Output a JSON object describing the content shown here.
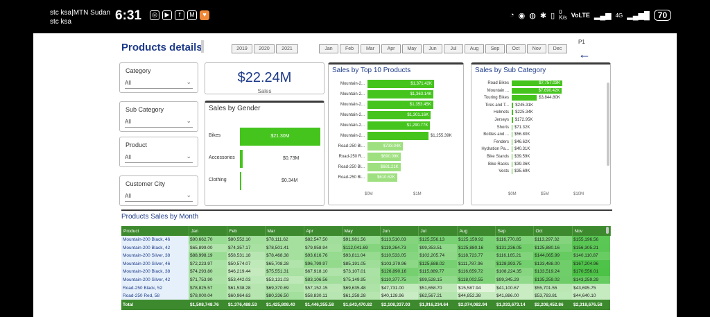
{
  "status": {
    "carrier_line1": "stc ksa|MTN Sudan",
    "carrier_line2": "stc ksa",
    "time": "6:31",
    "speed_value": "0",
    "speed_unit": "K/s",
    "volte": "VoLTE",
    "network": "4G",
    "battery": "70"
  },
  "header": {
    "title": "Products details",
    "page_indicator": "P1",
    "years": [
      "2019",
      "2020",
      "2021"
    ],
    "months": [
      "Jan",
      "Feb",
      "Mar",
      "Apr",
      "May",
      "Jun",
      "Jul",
      "Aug",
      "Sep",
      "Oct",
      "Nov",
      "Dec"
    ]
  },
  "slicers": {
    "category": {
      "label": "Category",
      "value": "All"
    },
    "sub_category": {
      "label": "Sub Category",
      "value": "All"
    },
    "product": {
      "label": "Product",
      "value": "All"
    },
    "customer_city": {
      "label": "Customer City",
      "value": "All"
    }
  },
  "kpi": {
    "value": "$22.24M",
    "label": "Sales"
  },
  "gender_chart": {
    "title": "Sales by Gender",
    "rows": [
      {
        "label": "Bikes",
        "value_label": "$21.30M",
        "value": 21.3
      },
      {
        "label": "Accessories",
        "value_label": "$0.73M",
        "value": 0.73
      },
      {
        "label": "Clothing",
        "value_label": "$0.34M",
        "value": 0.34
      }
    ]
  },
  "top10_chart": {
    "title": "Sales by Top 10 Products",
    "ticks": [
      "$0M",
      "$1M"
    ],
    "rows": [
      {
        "label": "Mountain-2...",
        "value_label": "$1,371.42K",
        "value": 1371.42,
        "strong": true
      },
      {
        "label": "Mountain-2...",
        "value_label": "$1,363.14K",
        "value": 1363.14,
        "strong": true
      },
      {
        "label": "Mountain-2...",
        "value_label": "$1,353.45K",
        "value": 1353.45,
        "strong": true
      },
      {
        "label": "Mountain-2...",
        "value_label": "$1,301.16K",
        "value": 1301.16,
        "strong": true
      },
      {
        "label": "Mountain-2...",
        "value_label": "$1,290.77K",
        "value": 1290.77,
        "strong": true
      },
      {
        "label": "Mountain-2...",
        "value_label": "$1,255.39K",
        "value": 1255.39,
        "strong": true
      },
      {
        "label": "Road-250 Bl...",
        "value_label": "$733.04K",
        "value": 733.04,
        "strong": false
      },
      {
        "label": "Road-250 R...",
        "value_label": "$690.09K",
        "value": 690.09,
        "strong": false
      },
      {
        "label": "Road-250 Bl...",
        "value_label": "$681.21K",
        "value": 681.21,
        "strong": false
      },
      {
        "label": "Road-250 Bl...",
        "value_label": "$610.62K",
        "value": 610.62,
        "strong": false
      }
    ]
  },
  "subcat_chart": {
    "title": "Sales by Sub Category",
    "ticks": [
      "$0M",
      "$5M",
      "$10M"
    ],
    "rows": [
      {
        "label": "Road Bikes",
        "value_label": "$7,757.03K",
        "value": 7757.03
      },
      {
        "label": "Mountain ...",
        "value_label": "$7,690.42K",
        "value": 7690.42
      },
      {
        "label": "Touring Bikes",
        "value_label": "$3,844.80K",
        "value": 3844.8
      },
      {
        "label": "Tires and T...",
        "value_label": "$245.31K",
        "value": 245.31
      },
      {
        "label": "Helmets",
        "value_label": "$225.34K",
        "value": 225.34
      },
      {
        "label": "Jerseys",
        "value_label": "$172.95K",
        "value": 172.95
      },
      {
        "label": "Shorts",
        "value_label": "$71.32K",
        "value": 71.32
      },
      {
        "label": "Bottles and ...",
        "value_label": "$56.80K",
        "value": 56.8
      },
      {
        "label": "Fenders",
        "value_label": "$46.62K",
        "value": 46.62
      },
      {
        "label": "Hydration Pa...",
        "value_label": "$40.31K",
        "value": 40.31
      },
      {
        "label": "Bike Stands",
        "value_label": "$39.59K",
        "value": 39.59
      },
      {
        "label": "Bike Racks",
        "value_label": "$39.36K",
        "value": 39.36
      },
      {
        "label": "Vests",
        "value_label": "$35.69K",
        "value": 35.69
      }
    ]
  },
  "matrix": {
    "title": "Products Sales by Month",
    "columns": [
      "Product",
      "Jan",
      "Feb",
      "Mar",
      "Apr",
      "May",
      "Jun",
      "Jul",
      "Aug",
      "Sep",
      "Oct",
      "Nov"
    ],
    "rows": [
      [
        "Mountain-200 Black, 46",
        "$90,662.70",
        "$80,552.10",
        "$78,111.62",
        "$82,547.50",
        "$91,981.56",
        "$113,510.03",
        "$125,556.13",
        "$125,159.92",
        "$116,770.85",
        "$113,297.32",
        "$155,196.56"
      ],
      [
        "Mountain-200 Black, 42",
        "$65,899.00",
        "$74,357.17",
        "$78,501.41",
        "$79,958.94",
        "$112,041.69",
        "$119,264.73",
        "$99,353.51",
        "$125,880.16",
        "$131,236.05",
        "$125,880.16",
        "$156,305.21"
      ],
      [
        "Mountain-200 Silver, 38",
        "$88,998.19",
        "$58,531.18",
        "$78,468.38",
        "$93,616.76",
        "$93,811.04",
        "$110,533.05",
        "$102,205.74",
        "$118,723.77",
        "$116,165.21",
        "$144,065.99",
        "$140,110.87"
      ],
      [
        "Mountain-200 Silver, 46",
        "$72,223.97",
        "$50,574.07",
        "$65,708.28",
        "$96,799.97",
        "$85,191.05",
        "$103,379.96",
        "$125,688.02",
        "$111,787.96",
        "$128,993.75",
        "$133,488.00",
        "$167,204.96"
      ],
      [
        "Mountain-200 Black, 38",
        "$74,293.80",
        "$46,219.44",
        "$75,551.31",
        "$67,918.10",
        "$73,107.01",
        "$126,890.16",
        "$115,889.77",
        "$116,659.72",
        "$108,224.35",
        "$133,519.24",
        "$170,556.01"
      ],
      [
        "Mountain-200 Silver, 42",
        "$71,753.90",
        "$53,442.03",
        "$53,131.03",
        "$83,106.56",
        "$75,149.95",
        "$110,377.75",
        "$99,528.15",
        "$118,002.55",
        "$99,345.29",
        "$135,259.02",
        "$143,259.29"
      ],
      [
        "Road-250 Black, 52",
        "$78,825.57",
        "$61,538.28",
        "$69,370.69",
        "$57,152.15",
        "$69,635.48",
        "$47,731.00",
        "$51,658.70",
        "$15,587.94",
        "$41,100.67",
        "$55,701.55",
        "$43,695.75"
      ],
      [
        "Road-250 Red, 58",
        "$78,000.04",
        "$60,964.63",
        "$80,336.50",
        "$58,830.11",
        "$61,258.28",
        "$40,128.96",
        "$62,567.21",
        "$44,852.38",
        "$41,886.00",
        "$53,783.81",
        "$44,640.10"
      ]
    ],
    "total": [
      "Total",
      "$1,508,748.76",
      "$1,376,488.53",
      "$1,425,808.40",
      "$1,446,355.58",
      "$1,643,470.82",
      "$2,108,337.03",
      "$1,916,234.64",
      "$2,074,082.94",
      "$1,033,673.14",
      "$2,208,452.86",
      "$2,318,676.58"
    ]
  },
  "colors": {
    "accent": "#1d3a8a",
    "bar_strong": "#46c41e",
    "bar_light": "#9ee07f",
    "table_header": "#3d8a2e"
  }
}
